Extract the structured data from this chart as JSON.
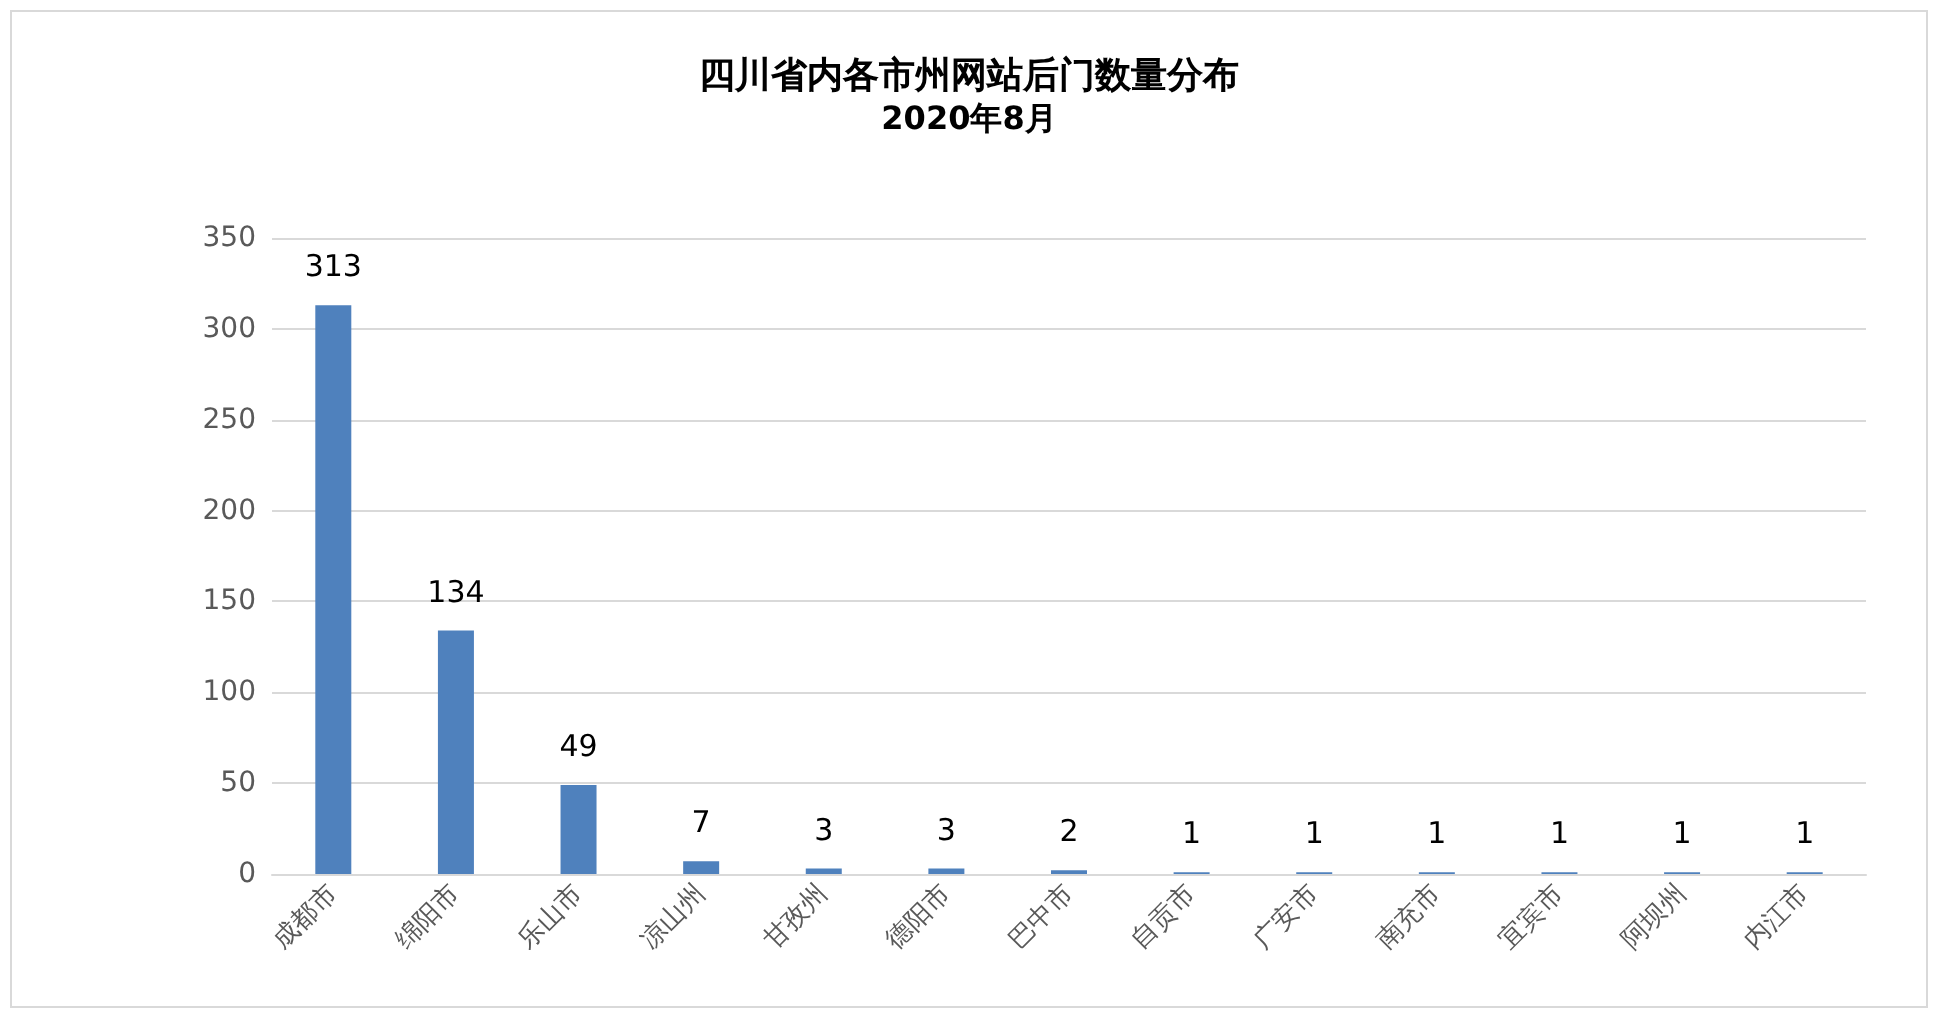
{
  "chart_data": {
    "type": "bar",
    "title": "四川省内各市州网站后门数量分布",
    "subtitle": "2020年8月",
    "categories": [
      "成都市",
      "绵阳市",
      "乐山市",
      "凉山州",
      "甘孜州",
      "德阳市",
      "巴中市",
      "自贡市",
      "广安市",
      "南充市",
      "宜宾市",
      "阿坝州",
      "内江市"
    ],
    "values": [
      313,
      134,
      49,
      7,
      3,
      3,
      2,
      1,
      1,
      1,
      1,
      1,
      1
    ],
    "color": "#4f81bd",
    "ylim": [
      0,
      350
    ],
    "yticks": [
      0,
      50,
      100,
      150,
      200,
      250,
      300,
      350
    ],
    "grid": "y",
    "data_labels": true
  }
}
